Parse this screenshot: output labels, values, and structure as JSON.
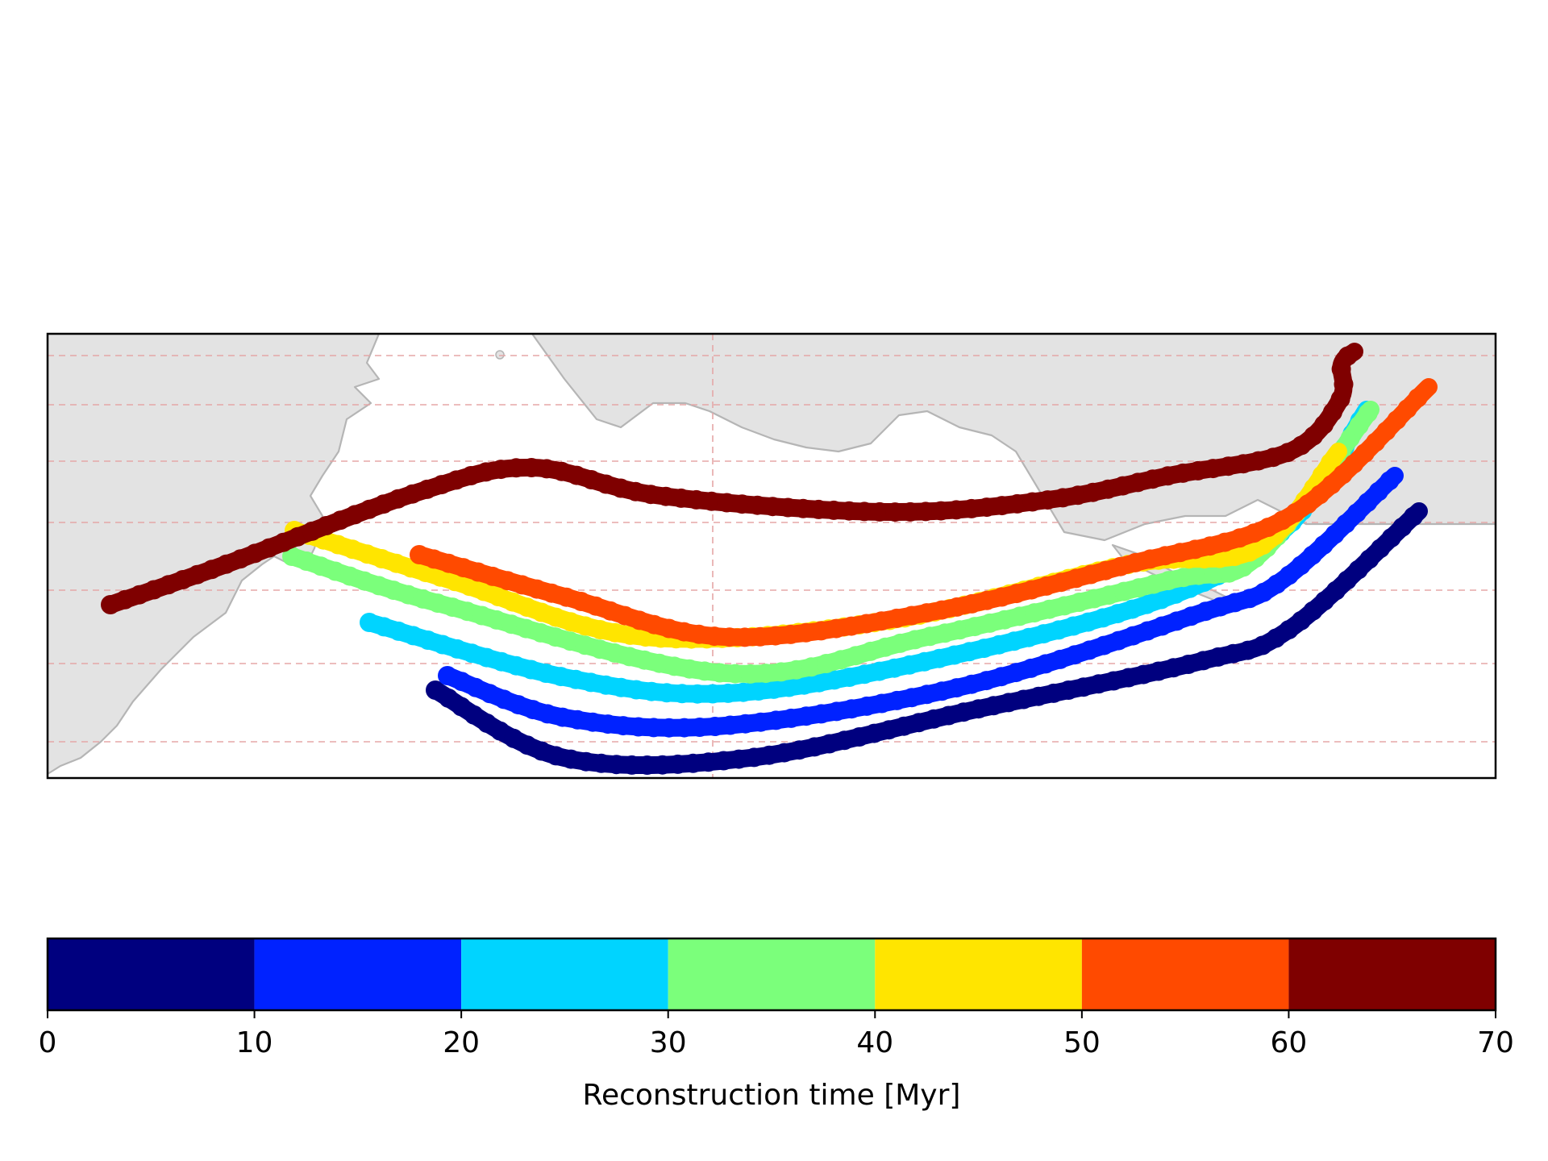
{
  "chart_data": {
    "type": "scatter",
    "title": "",
    "map": {
      "land_color": "#e3e3e3",
      "coastline_color": "#b5b5b5",
      "gridline_color": "#e5a7a7",
      "gridline_style": "dashed",
      "gridlines": "on",
      "frame_color": "#000000"
    },
    "colorbar": {
      "label": "Reconstruction time [Myr]",
      "placement": "bottom",
      "orientation": "horizontal",
      "range": [
        0,
        70
      ],
      "ticks": [
        "0",
        "10",
        "20",
        "30",
        "40",
        "50",
        "60",
        "70"
      ],
      "bins": [
        {
          "from": 0,
          "to": 10,
          "color": "#00007f"
        },
        {
          "from": 10,
          "to": 20,
          "color": "#0022ff"
        },
        {
          "from": 20,
          "to": 30,
          "color": "#00d4ff"
        },
        {
          "from": 30,
          "to": 40,
          "color": "#7bff7b"
        },
        {
          "from": 40,
          "to": 50,
          "color": "#ffe500"
        },
        {
          "from": 50,
          "to": 60,
          "color": "#ff4a00"
        },
        {
          "from": 60,
          "to": 70,
          "color": "#7f0000"
        }
      ]
    },
    "series": [
      {
        "time_bin": "0-10",
        "color": "#00007f"
      },
      {
        "time_bin": "10-20",
        "color": "#0022ff"
      },
      {
        "time_bin": "20-30",
        "color": "#00d4ff"
      },
      {
        "time_bin": "30-40",
        "color": "#7bff7b"
      },
      {
        "time_bin": "40-50",
        "color": "#ffe500"
      },
      {
        "time_bin": "50-60",
        "color": "#ff4a00"
      },
      {
        "time_bin": "60-70",
        "color": "#7f0000"
      }
    ]
  }
}
